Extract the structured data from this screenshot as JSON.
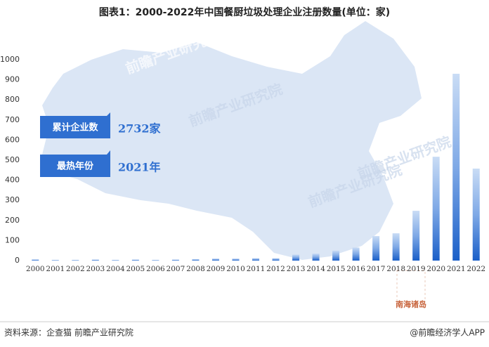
{
  "chart_data": {
    "type": "bar",
    "title": "图表1：2000-2022年中国餐厨垃圾处理企业注册数量(单位：家)",
    "categories": [
      "2000",
      "2001",
      "2002",
      "2003",
      "2004",
      "2005",
      "2006",
      "2007",
      "2008",
      "2009",
      "2010",
      "2011",
      "2012",
      "2013",
      "2014",
      "2015",
      "2016",
      "2017",
      "2018",
      "2019",
      "2020",
      "2021",
      "2022"
    ],
    "values": [
      6,
      3,
      3,
      5,
      3,
      5,
      3,
      5,
      7,
      10,
      10,
      12,
      12,
      30,
      35,
      50,
      65,
      122,
      136,
      248,
      517,
      930,
      458
    ],
    "color": "#1a5fc8",
    "ylim": [
      0,
      1000
    ],
    "yticks": [
      0,
      100,
      200,
      300,
      400,
      500,
      600,
      700,
      800,
      900,
      1000
    ],
    "grid": false,
    "annotations": [
      {
        "label": "累计企业数",
        "text": "2732家"
      },
      {
        "label": "最热年份",
        "text": "2021年"
      }
    ],
    "map_label": "南海诸岛",
    "watermark": "前瞻产业研究院",
    "source": "资料来源：企查猫 前瞻产业研究院",
    "brand": "@前瞻经济学人APP"
  }
}
